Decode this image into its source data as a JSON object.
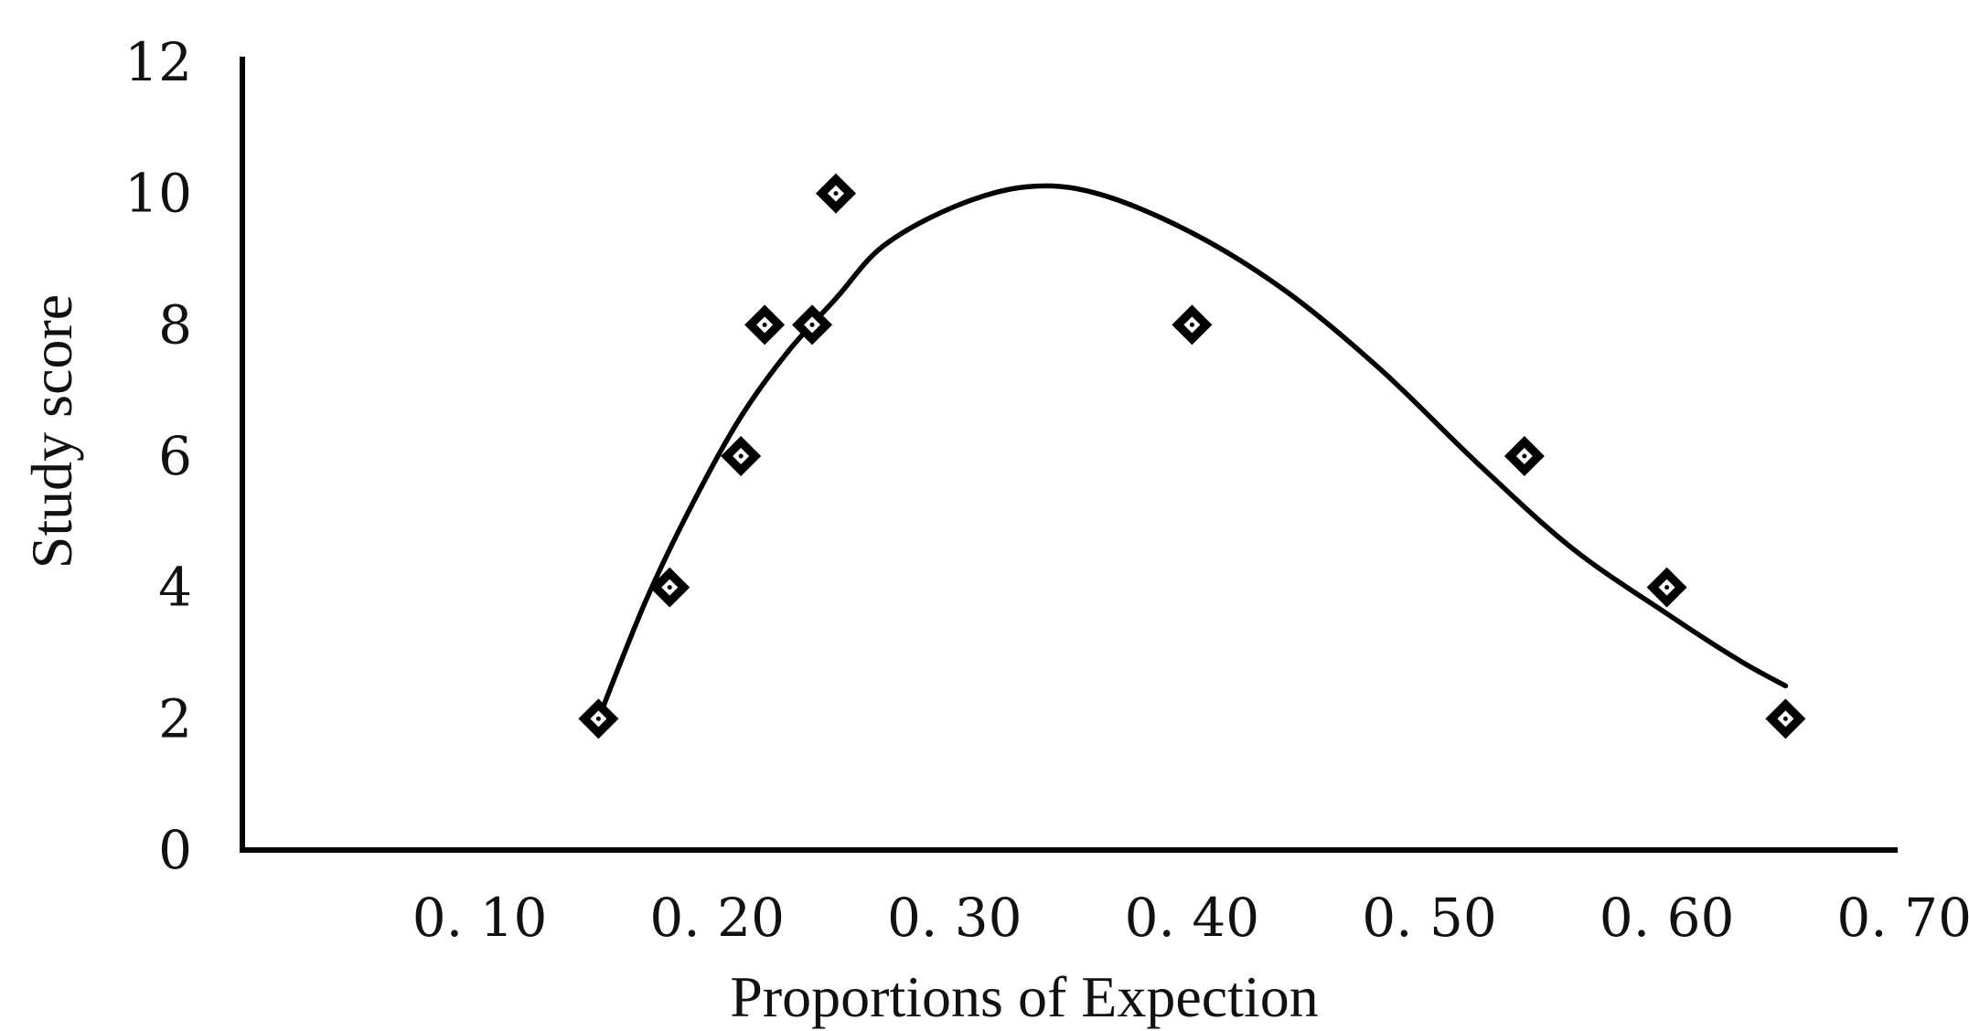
{
  "chart_data": {
    "type": "scatter",
    "title": "",
    "xlabel": "Proportions of Expection",
    "ylabel": "Study score",
    "xlim": [
      0.0,
      0.7
    ],
    "ylim": [
      0,
      12
    ],
    "x_ticks": [
      {
        "value": 0.1,
        "label": "0. 10"
      },
      {
        "value": 0.2,
        "label": "0. 20"
      },
      {
        "value": 0.3,
        "label": "0. 30"
      },
      {
        "value": 0.4,
        "label": "0. 40"
      },
      {
        "value": 0.5,
        "label": "0. 50"
      },
      {
        "value": 0.6,
        "label": "0. 60"
      },
      {
        "value": 0.7,
        "label": "0. 70"
      }
    ],
    "y_ticks": [
      {
        "value": 0,
        "label": "0"
      },
      {
        "value": 2,
        "label": "2"
      },
      {
        "value": 4,
        "label": "4"
      },
      {
        "value": 6,
        "label": "6"
      },
      {
        "value": 8,
        "label": "8"
      },
      {
        "value": 10,
        "label": "10"
      },
      {
        "value": 12,
        "label": "12"
      }
    ],
    "grid": false,
    "legend": "none",
    "marker": "diamond",
    "color": "#000000",
    "points": [
      {
        "x": 0.15,
        "y": 2
      },
      {
        "x": 0.18,
        "y": 4
      },
      {
        "x": 0.21,
        "y": 6
      },
      {
        "x": 0.22,
        "y": 8
      },
      {
        "x": 0.24,
        "y": 8
      },
      {
        "x": 0.25,
        "y": 10
      },
      {
        "x": 0.4,
        "y": 8
      },
      {
        "x": 0.54,
        "y": 6
      },
      {
        "x": 0.6,
        "y": 4
      },
      {
        "x": 0.65,
        "y": 2
      }
    ],
    "trendline": {
      "type": "fitted curve",
      "points": [
        {
          "x": 0.15,
          "y": 2.0
        },
        {
          "x": 0.17,
          "y": 3.8
        },
        {
          "x": 0.19,
          "y": 5.3
        },
        {
          "x": 0.21,
          "y": 6.6
        },
        {
          "x": 0.23,
          "y": 7.6
        },
        {
          "x": 0.25,
          "y": 8.4
        },
        {
          "x": 0.27,
          "y": 9.2
        },
        {
          "x": 0.3,
          "y": 9.8
        },
        {
          "x": 0.33,
          "y": 10.1
        },
        {
          "x": 0.36,
          "y": 10.0
        },
        {
          "x": 0.4,
          "y": 9.4
        },
        {
          "x": 0.44,
          "y": 8.5
        },
        {
          "x": 0.48,
          "y": 7.3
        },
        {
          "x": 0.52,
          "y": 5.9
        },
        {
          "x": 0.56,
          "y": 4.6
        },
        {
          "x": 0.6,
          "y": 3.6
        },
        {
          "x": 0.63,
          "y": 2.9
        },
        {
          "x": 0.65,
          "y": 2.5
        }
      ]
    }
  }
}
